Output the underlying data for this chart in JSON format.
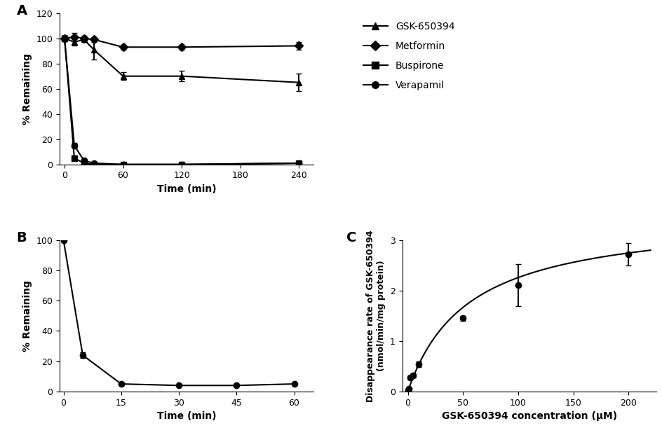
{
  "panel_A": {
    "time": [
      0,
      10,
      20,
      30,
      60,
      120,
      240
    ],
    "GSK650394": {
      "y": [
        100,
        97,
        99,
        91,
        70,
        70,
        65
      ],
      "yerr": [
        2,
        3,
        2,
        8,
        3,
        4,
        7
      ]
    },
    "Metformin": {
      "y": [
        100,
        101,
        100,
        99,
        93,
        93,
        94
      ],
      "yerr": [
        2,
        3,
        2,
        2,
        2,
        2,
        3
      ]
    },
    "Buspirone": {
      "y": [
        100,
        5,
        1,
        0,
        0,
        0,
        1
      ],
      "yerr": [
        2,
        2,
        1,
        0.5,
        0.5,
        0.5,
        0.5
      ]
    },
    "Verapamil": {
      "y": [
        100,
        15,
        3,
        1,
        0,
        0,
        1
      ],
      "yerr": [
        2,
        2,
        1,
        0.5,
        0.5,
        0.5,
        0.5
      ]
    },
    "ylim": [
      0,
      120
    ],
    "xlabel": "Time (min)",
    "ylabel": "% Remaining",
    "yticks": [
      0,
      20,
      40,
      60,
      80,
      100,
      120
    ],
    "xticks": [
      0,
      60,
      120,
      180,
      240
    ]
  },
  "panel_B": {
    "time": [
      0,
      5,
      15,
      30,
      45,
      60
    ],
    "GSK650394": {
      "y": [
        100,
        24,
        5,
        4,
        4,
        5
      ],
      "yerr": [
        1,
        2,
        1,
        0.5,
        0.5,
        0.5
      ]
    },
    "ylim": [
      0,
      100
    ],
    "xlabel": "Time (min)",
    "ylabel": "% Remaining",
    "yticks": [
      0,
      20,
      40,
      60,
      80,
      100
    ],
    "xticks": [
      0,
      15,
      30,
      45,
      60
    ]
  },
  "panel_C": {
    "conc": [
      0,
      1,
      2,
      5,
      10,
      50,
      100,
      200
    ],
    "rate": [
      0.02,
      0.05,
      0.28,
      0.32,
      0.54,
      1.45,
      2.11,
      2.72
    ],
    "yerr": [
      0.01,
      0.02,
      0.04,
      0.04,
      0.06,
      0.05,
      0.42,
      0.22
    ],
    "Vmax": 3.5,
    "Km": 55,
    "ylim": [
      0,
      3
    ],
    "xlim": [
      0,
      220
    ],
    "xlabel": "GSK-650394 concentration (μM)",
    "ylabel": "Disappearance rate of GSK-650394\n(nmol/min/mg protein)",
    "yticks": [
      0,
      1,
      2,
      3
    ],
    "xticks": [
      0,
      50,
      100,
      150,
      200
    ]
  },
  "legend_labels": [
    "GSK-650394",
    "Metformin",
    "Buspirone",
    "Verapamil"
  ],
  "color": "#000000",
  "label_A": "A",
  "label_B": "B",
  "label_C": "C"
}
